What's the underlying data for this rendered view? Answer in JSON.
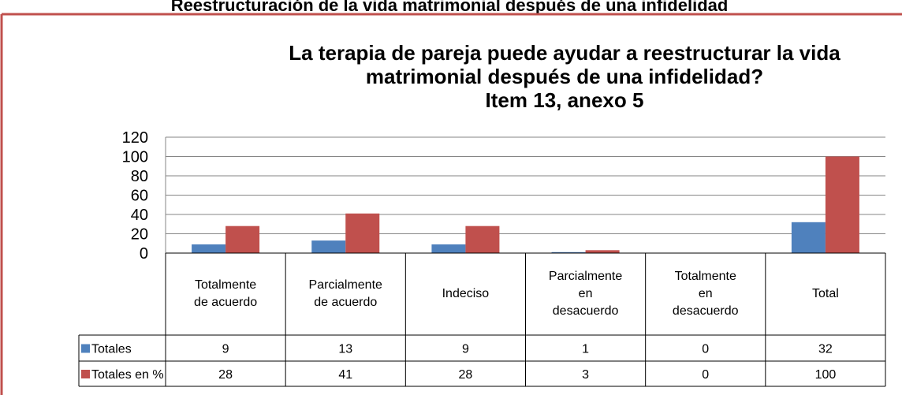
{
  "heading": "Reestructuración de la vida matrimonial después de una infidelidad",
  "chart_data": {
    "type": "bar",
    "title": [
      "La terapia de pareja puede ayudar a reestructurar la vida",
      "matrimonial después de una infidelidad?",
      "Item 13, anexo 5"
    ],
    "categories": [
      "Totalmente de acuerdo",
      "Parcialmente de acuerdo",
      "Indeciso",
      "Parcialmente en desacuerdo",
      "Totalmente en desacuerdo",
      "Total"
    ],
    "series": [
      {
        "name": "Totales",
        "color": "#4f81bd",
        "values": [
          9,
          13,
          9,
          1,
          0,
          32
        ]
      },
      {
        "name": "Totales en %",
        "color": "#c0504d",
        "values": [
          28,
          41,
          28,
          3,
          0,
          100
        ]
      }
    ],
    "ylim": [
      0,
      120
    ],
    "yticks": [
      0,
      20,
      40,
      60,
      80,
      100,
      120
    ],
    "grid": true,
    "data_table": true
  }
}
